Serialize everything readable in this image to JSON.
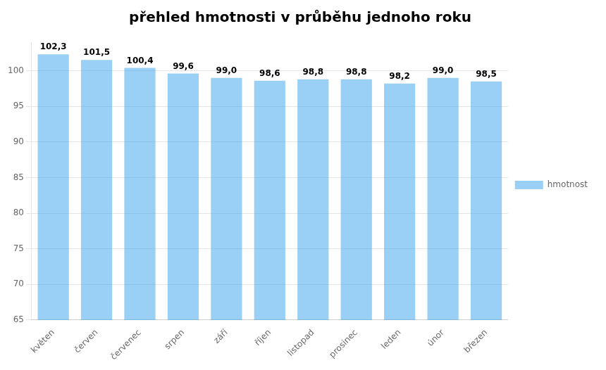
{
  "chart_data": {
    "type": "bar",
    "title": "přehled hmotnosti v průběhu jednoho roku",
    "categories": [
      "květen",
      "červen",
      "červenec",
      "srpen",
      "září",
      "říjen",
      "listopad",
      "prosinec",
      "leden",
      "únor",
      "březen"
    ],
    "series": [
      {
        "name": "hmotnost",
        "values": [
          102.3,
          101.5,
          100.4,
          99.6,
          99.0,
          98.6,
          98.8,
          98.8,
          98.2,
          99.0,
          98.5
        ],
        "value_labels": [
          "102,3",
          "101,5",
          "100,4",
          "99,6",
          "99,0",
          "98,6",
          "98,8",
          "98,8",
          "98,2",
          "99,0",
          "98,5"
        ]
      }
    ],
    "ylim": [
      65,
      104
    ],
    "yticks": [
      65,
      70,
      75,
      80,
      85,
      90,
      95,
      100
    ],
    "grid": "y",
    "legend": "right",
    "data_labels": true
  }
}
